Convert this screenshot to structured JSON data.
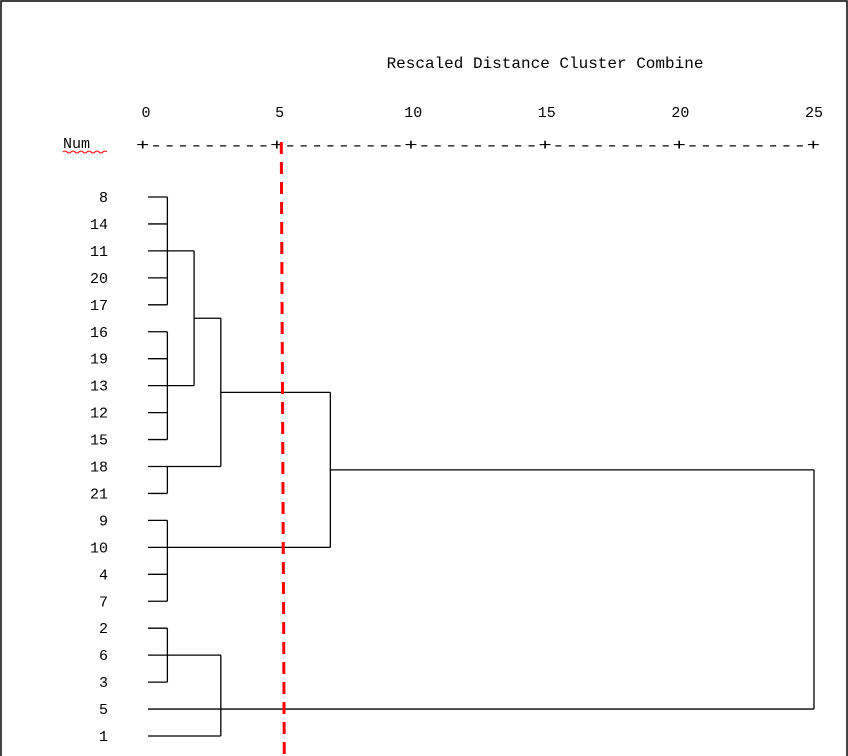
{
  "chart_data": {
    "type": "dendrogram",
    "title": "Rescaled Distance Cluster Combine",
    "row_header": "Num",
    "axis": {
      "ticks": [
        0,
        5,
        10,
        15,
        20,
        25
      ],
      "range": [
        0,
        25
      ],
      "dashed_line_text": "+---------+---------+---------+---------+---------+"
    },
    "leaves": [
      "8",
      "14",
      "11",
      "20",
      "17",
      "16",
      "19",
      "13",
      "12",
      "15",
      "18",
      "21",
      "9",
      "10",
      "4",
      "7",
      "2",
      "6",
      "3",
      "5",
      "1"
    ],
    "merges": [
      {
        "members": [
          "8",
          "14",
          "11",
          "20",
          "17"
        ],
        "distance": 0.8
      },
      {
        "members": [
          "16",
          "19",
          "13",
          "12",
          "15"
        ],
        "distance": 0.8
      },
      {
        "members": [
          "18",
          "21"
        ],
        "distance": 0.8
      },
      {
        "members": [
          "9",
          "10",
          "4",
          "7"
        ],
        "distance": 0.8
      },
      {
        "members": [
          "2",
          "6",
          "3"
        ],
        "distance": 0.8
      },
      {
        "members": [
          "cluster_8",
          "cluster_16"
        ],
        "distance": 1.8
      },
      {
        "members": [
          "cluster_8_16",
          "cluster_18"
        ],
        "distance": 2.8
      },
      {
        "members": [
          "cluster_2",
          "1"
        ],
        "distance": 2.8
      },
      {
        "members": [
          "cluster_8_16_18",
          "cluster_9"
        ],
        "distance": 6.9
      },
      {
        "members": [
          "cluster_top",
          "5"
        ],
        "distance": 25
      }
    ],
    "cut_line": {
      "distance": 5.1,
      "style": "dashed",
      "color": "#ff0000"
    },
    "colors": {
      "lines": "#000000",
      "cut_line": "#ff0000",
      "border": "#000000"
    }
  }
}
